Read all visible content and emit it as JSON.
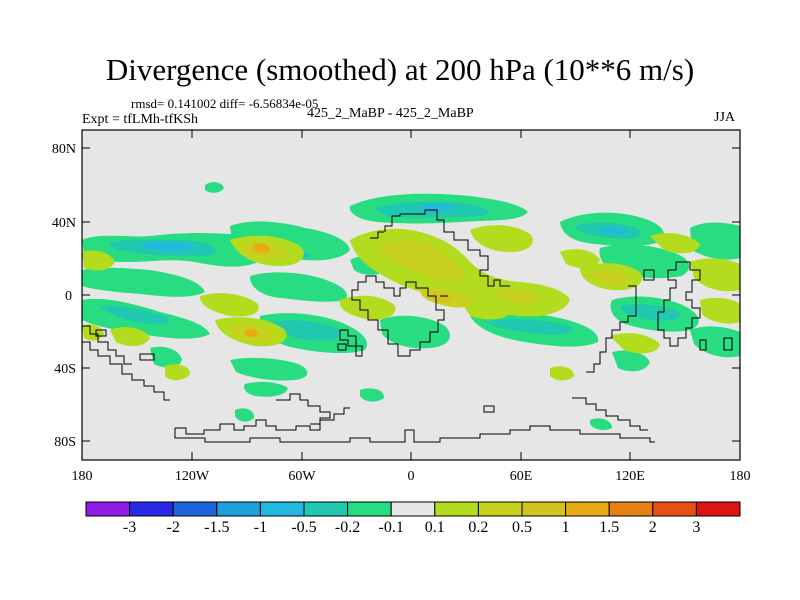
{
  "title": "Divergence (smoothed) at 200 hPa (10**6 m/s)",
  "stats_line": "rmsd= 0.141002 diff= -6.56834e-05",
  "experiment": "Expt = tfLMh-tfKSh",
  "center_label": "425_2_MaBP - 425_2_MaBP",
  "season": "JJA",
  "map": {
    "background_color": "#e6e6e6",
    "lat_ticks": [
      "80N",
      "40N",
      "0",
      "40S",
      "80S"
    ],
    "lon_ticks": [
      "180",
      "120W",
      "60W",
      "0",
      "60E",
      "120E",
      "180"
    ]
  },
  "colorbar": {
    "colors": [
      "#8c1ce6",
      "#2828e6",
      "#1e64dc",
      "#1ea0dc",
      "#22b8e0",
      "#20c8b0",
      "#28dc82",
      "#e6e6e6",
      "#b4dc1e",
      "#c8d21e",
      "#d2c31e",
      "#e6aa14",
      "#e68214",
      "#e65014",
      "#dc1414"
    ],
    "labels": [
      "-3",
      "-2",
      "-1.5",
      "-1",
      "-0.5",
      "-0.2",
      "-0.1",
      "0.1",
      "0.2",
      "0.5",
      "1",
      "1.5",
      "2",
      "3"
    ]
  }
}
